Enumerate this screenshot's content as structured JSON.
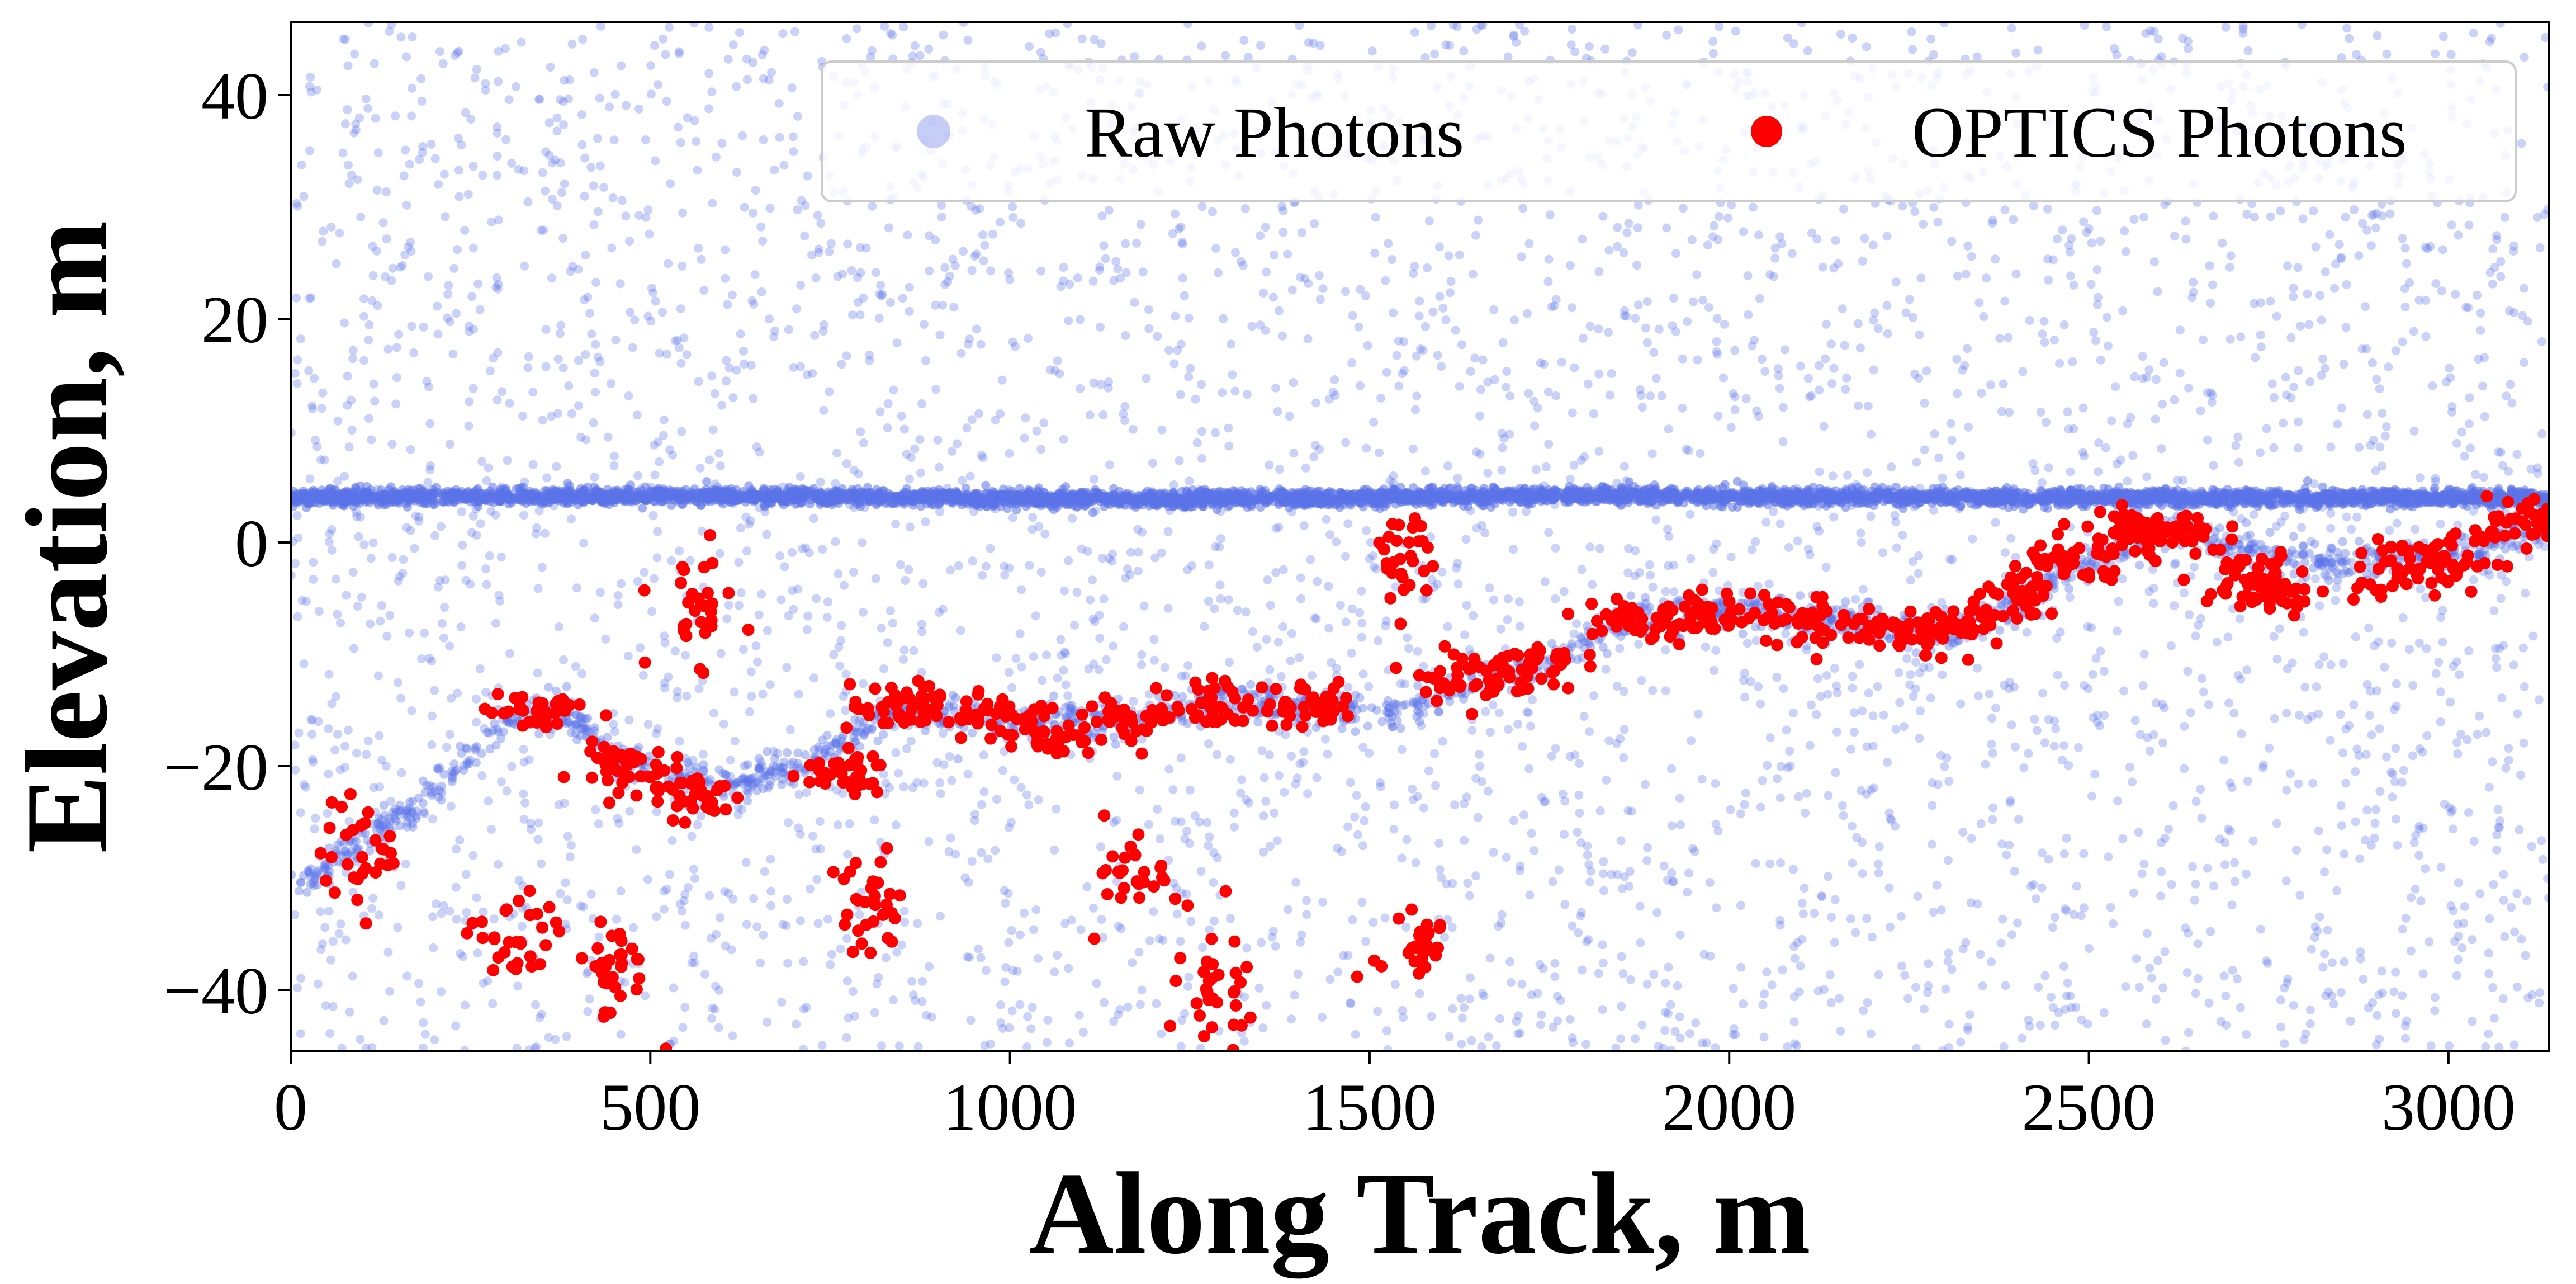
{
  "chart_data": {
    "type": "scatter",
    "xlabel": "Along Track, m",
    "ylabel": "Elevation, m",
    "xlim": [
      0,
      3140
    ],
    "ylim": [
      -45.5,
      46.5
    ],
    "xticks": [
      0,
      500,
      1000,
      1500,
      2000,
      2500,
      3000
    ],
    "xtick_labels": [
      "0",
      "500",
      "1000",
      "1500",
      "2000",
      "2500",
      "3000"
    ],
    "yticks": [
      40,
      20,
      0,
      -20,
      -40
    ],
    "ytick_labels": [
      "40",
      "20",
      "0",
      "−20",
      "−40"
    ],
    "grid": false,
    "legend_placement": "top-right",
    "legend": [
      "Raw Photons",
      "OPTICS Photons"
    ],
    "series": [
      {
        "name": "Raw Photons",
        "color": "#5b72e8",
        "description_components": {
          "surface_line": [
            [
              0,
              4
            ],
            [
              600,
              4.2
            ],
            [
              1200,
              3.8
            ],
            [
              1800,
              4.2
            ],
            [
              2400,
              4.0
            ],
            [
              3140,
              4.0
            ]
          ],
          "ground_trend": [
            [
              0,
              -31
            ],
            [
              100,
              -27
            ],
            [
              200,
              -22
            ],
            [
              300,
              -16
            ],
            [
              380,
              -15
            ],
            [
              450,
              -19
            ],
            [
              600,
              -22
            ],
            [
              700,
              -20
            ],
            [
              850,
              -15
            ],
            [
              1000,
              -16
            ],
            [
              1150,
              -16
            ],
            [
              1300,
              -14
            ],
            [
              1450,
              -15
            ],
            [
              1550,
              -15
            ],
            [
              1650,
              -12
            ],
            [
              1750,
              -11
            ],
            [
              1850,
              -7
            ],
            [
              2000,
              -6
            ],
            [
              2150,
              -7
            ],
            [
              2300,
              -8
            ],
            [
              2420,
              -5
            ],
            [
              2520,
              -1
            ],
            [
              2620,
              1
            ],
            [
              2750,
              -1
            ],
            [
              2900,
              -2
            ],
            [
              3040,
              -1
            ],
            [
              3140,
              2
            ]
          ],
          "noise_range": {
            "x": [
              0,
              3140
            ],
            "y": [
              -45.5,
              46.5
            ]
          }
        }
      },
      {
        "name": "OPTICS Photons",
        "color": "#ff0000",
        "clusters": [
          {
            "x": 100,
            "y": -28
          },
          {
            "x": 340,
            "y": -15
          },
          {
            "x": 450,
            "y": -20
          },
          {
            "x": 560,
            "y": -22.5
          },
          {
            "x": 760,
            "y": -20.5
          },
          {
            "x": 850,
            "y": -15
          },
          {
            "x": 950,
            "y": -15
          },
          {
            "x": 1050,
            "y": -17
          },
          {
            "x": 1180,
            "y": -15.5
          },
          {
            "x": 1300,
            "y": -14.5
          },
          {
            "x": 1420,
            "y": -14.5
          },
          {
            "x": 1620,
            "y": -12
          },
          {
            "x": 1720,
            "y": -11
          },
          {
            "x": 1860,
            "y": -7
          },
          {
            "x": 1970,
            "y": -6.5
          },
          {
            "x": 2100,
            "y": -7
          },
          {
            "x": 2230,
            "y": -8
          },
          {
            "x": 2320,
            "y": -7.5
          },
          {
            "x": 2410,
            "y": -5
          },
          {
            "x": 2480,
            "y": -2
          },
          {
            "x": 2560,
            "y": 0.5
          },
          {
            "x": 2620,
            "y": 1
          },
          {
            "x": 2720,
            "y": -3
          },
          {
            "x": 2760,
            "y": -4
          },
          {
            "x": 2920,
            "y": -2.5
          },
          {
            "x": 3010,
            "y": -1.5
          },
          {
            "x": 3110,
            "y": 2
          },
          {
            "x": 560,
            "y": -6
          },
          {
            "x": 1550,
            "y": -1.5
          },
          {
            "x": 310,
            "y": -36
          },
          {
            "x": 450,
            "y": -38
          },
          {
            "x": 800,
            "y": -33
          },
          {
            "x": 1180,
            "y": -29
          },
          {
            "x": 1300,
            "y": -41
          },
          {
            "x": 1560,
            "y": -36
          }
        ]
      }
    ]
  }
}
